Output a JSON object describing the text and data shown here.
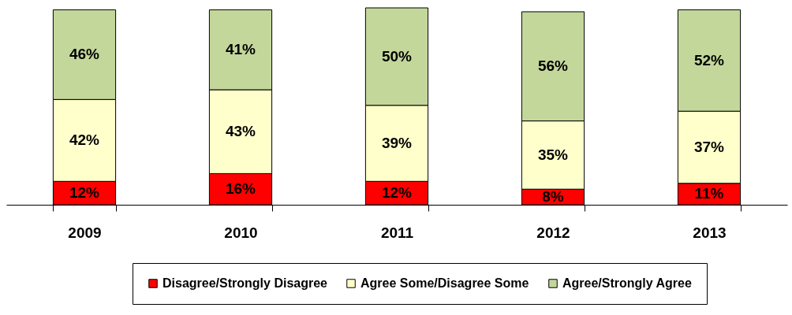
{
  "chart_data": {
    "type": "bar",
    "stacked": true,
    "categories": [
      "2009",
      "2010",
      "2011",
      "2012",
      "2013"
    ],
    "series": [
      {
        "name": "Disagree/Strongly Disagree",
        "color": "#ff0000",
        "values": [
          12,
          16,
          12,
          8,
          11
        ],
        "value_labels": [
          "12%",
          "16%",
          "12%",
          "8%",
          "11%"
        ]
      },
      {
        "name": "Agree Some/Disagree Some",
        "color": "#ffffcc",
        "values": [
          42,
          43,
          39,
          35,
          37
        ],
        "value_labels": [
          "42%",
          "43%",
          "39%",
          "35%",
          "37%"
        ]
      },
      {
        "name": "Agree/Strongly Agree",
        "color": "#c4d79b",
        "values": [
          46,
          41,
          50,
          56,
          52
        ],
        "value_labels": [
          "46%",
          "41%",
          "50%",
          "56%",
          "52%"
        ]
      }
    ],
    "legend": "bottom",
    "grid": false
  }
}
